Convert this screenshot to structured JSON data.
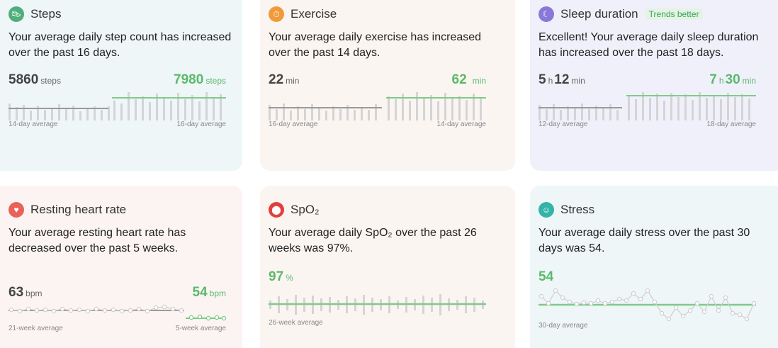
{
  "cards": {
    "steps": {
      "title": "Steps",
      "icon": "shoe-icon",
      "icon_color": "#4fae7c",
      "summary": "Your average daily step count has increased over the past 16 days.",
      "left_value": "5860",
      "left_unit": "steps",
      "right_value": "7980",
      "right_unit": "steps",
      "left_label": "14-day average",
      "right_label": "16-day average"
    },
    "exercise": {
      "title": "Exercise",
      "icon": "stopwatch-icon",
      "icon_color": "#f29a3a",
      "summary": "Your average daily exercise has increased over the past 14 days.",
      "left_value": "22",
      "left_unit": "min",
      "right_value": "62",
      "right_unit": "min",
      "left_label": "16-day average",
      "right_label": "14-day average"
    },
    "sleep": {
      "title": "Sleep duration",
      "badge": "Trends better",
      "icon": "moon-icon",
      "icon_color": "#8a78d8",
      "summary": "Excellent!  Your average daily sleep duration has increased over the past 18 days.",
      "left_h": "5",
      "left_m": "12",
      "right_h": "7",
      "right_m": "30",
      "h_unit": "h",
      "m_unit": "min",
      "left_label": "12-day average",
      "right_label": "18-day average"
    },
    "heart": {
      "title": "Resting heart rate",
      "icon": "heart-icon",
      "icon_color": "#e8625a",
      "summary": "Your average resting heart rate has decreased over the past 5 weeks.",
      "left_value": "63",
      "left_unit": "bpm",
      "right_value": "54",
      "right_unit": "bpm",
      "left_label": "21-week average",
      "right_label": "5-week average"
    },
    "spo2": {
      "title": "SpO₂",
      "icon": "blood-drop-icon",
      "icon_color": "#e2403c",
      "summary": "Your average daily SpO₂ over the past 26 weeks was 97%.",
      "value": "97",
      "unit": "%",
      "left_label": "26-week average"
    },
    "stress": {
      "title": "Stress",
      "icon": "face-icon",
      "icon_color": "#34b3a9",
      "summary": "Your average daily stress over the past 30 days was 54.",
      "value": "54",
      "left_label": "30-day average"
    }
  },
  "colors": {
    "green": "#5ab96a",
    "green_line": "#7fcb87",
    "gray_bar": "#d4d4d6",
    "gray_line": "#9a9a9a"
  }
}
